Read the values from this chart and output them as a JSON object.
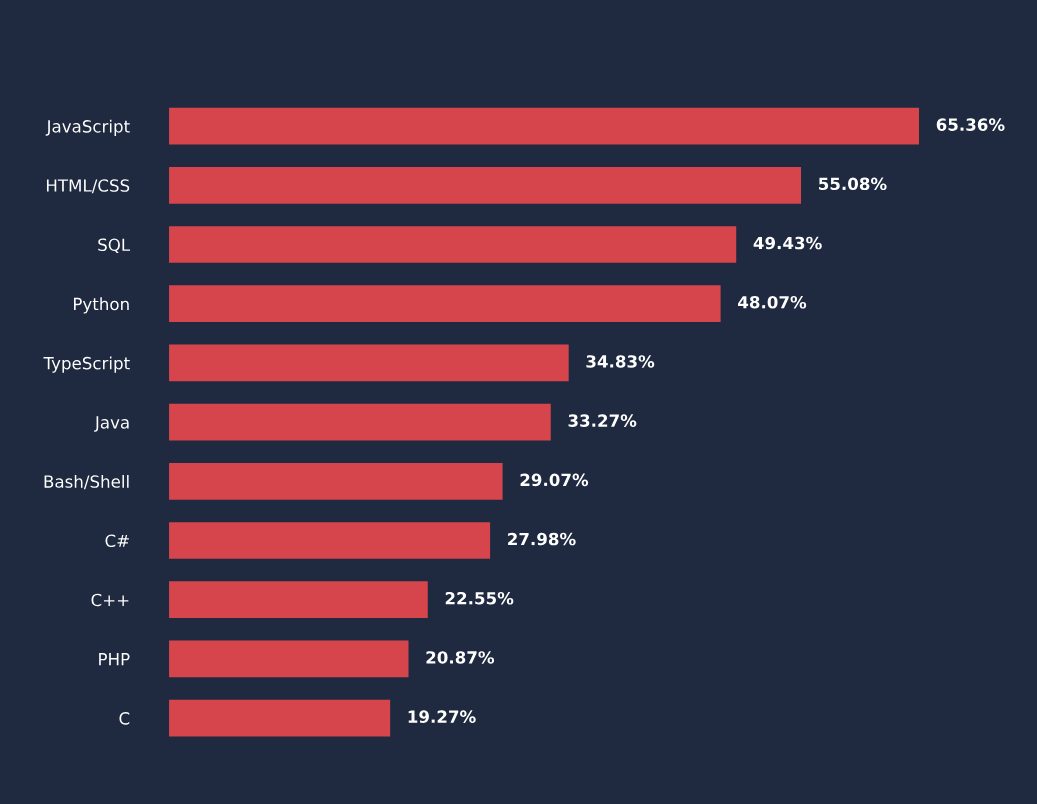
{
  "chart_data": {
    "type": "bar",
    "orientation": "horizontal",
    "categories": [
      "JavaScript",
      "HTML/CSS",
      "SQL",
      "Python",
      "TypeScript",
      "Java",
      "Bash/Shell",
      "C#",
      "C++",
      "PHP",
      "C"
    ],
    "values": [
      65.36,
      55.08,
      49.43,
      48.07,
      34.83,
      33.27,
      29.07,
      27.98,
      22.55,
      20.87,
      19.27
    ],
    "value_labels": [
      "65.36%",
      "55.08%",
      "49.43%",
      "48.07%",
      "34.83%",
      "33.27%",
      "29.07%",
      "27.98%",
      "22.55%",
      "20.87%",
      "19.27%"
    ],
    "color": "#d6454c",
    "tick_labels": "y",
    "grid": false,
    "legend": false
  }
}
